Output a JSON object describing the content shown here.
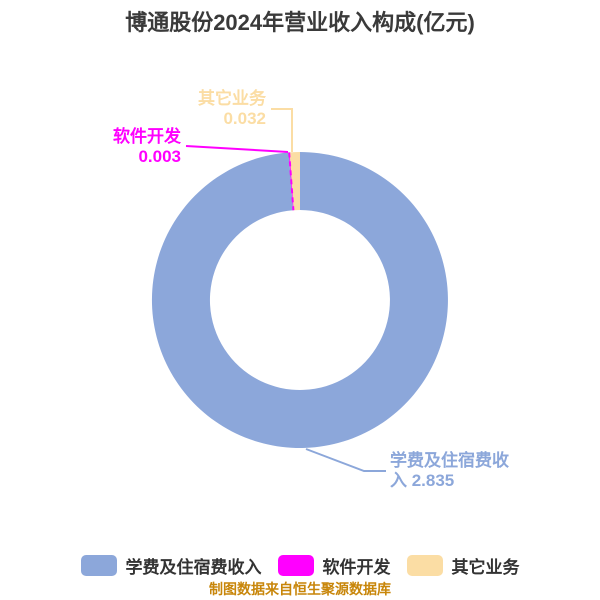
{
  "title": "博通股份2024年营业收入构成(亿元)",
  "footer": "制图数据来自恒生聚源数据库",
  "background": "#ffffff",
  "text_colors": {
    "title": "#3a3a3a",
    "legend": "#333333",
    "footer": "#c8860a"
  },
  "chart_data": {
    "type": "pie",
    "subtype": "donut",
    "title": "博通股份2024年营业收入构成(亿元)",
    "unit": "亿元",
    "start_angle": "12-oclock",
    "direction": "clockwise",
    "inner_radius_ratio": 0.61,
    "legend_position": "bottom",
    "series": [
      {
        "name": "学费及住宿费收入",
        "value": 2.835,
        "color": "#8ca7da"
      },
      {
        "name": "软件开发",
        "value": 0.003,
        "color": "#ff00ff"
      },
      {
        "name": "其它业务",
        "value": 0.032,
        "color": "#fbdda4"
      }
    ]
  },
  "callouts": {
    "other": {
      "line1": "其它业务",
      "line2": "0.032"
    },
    "software": {
      "line1": "软件开发",
      "line2": "0.003"
    },
    "tuition": {
      "line1": "学费及住宿费收",
      "line2": "入 2.835"
    }
  }
}
